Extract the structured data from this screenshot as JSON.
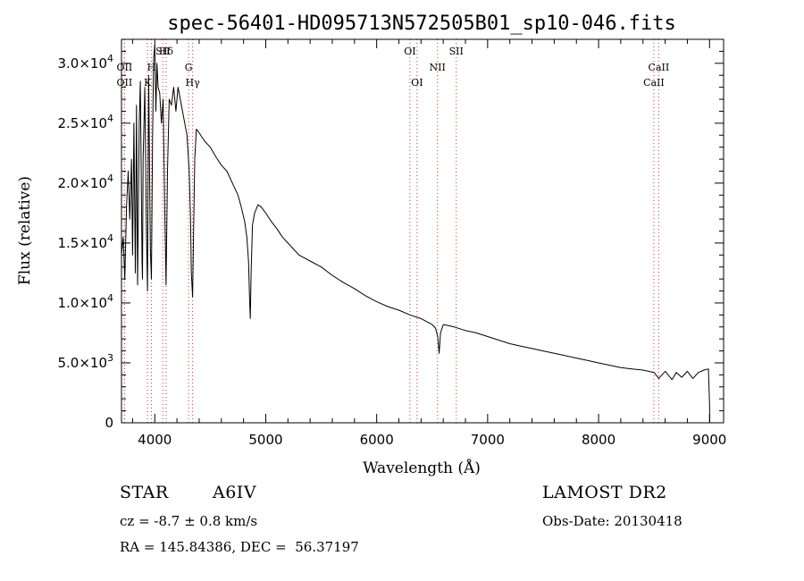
{
  "title": "spec-56401-HD095713N572505B01_sp10-046.fits",
  "info": {
    "class_label": "STAR",
    "subclass": "A6IV",
    "survey": "LAMOST DR2",
    "cz": "cz = -8.7 ± 0.8 km/s",
    "obs_date": "Obs-Date: 20130418",
    "radec": "RA = 145.84386, DEC =  56.37197"
  },
  "chart_data": {
    "type": "line",
    "title": "spec-56401-HD095713N572505B01_sp10-046.fits",
    "xlabel": "Wavelength (Å)",
    "ylabel": "Flux (relative)",
    "xlim": [
      3700,
      9100
    ],
    "ylim": [
      0,
      32000
    ],
    "grid": false,
    "x_ticks": [
      {
        "value": 4000,
        "label": "4000"
      },
      {
        "value": 5000,
        "label": "5000"
      },
      {
        "value": 6000,
        "label": "6000"
      },
      {
        "value": 7000,
        "label": "7000"
      },
      {
        "value": 8000,
        "label": "8000"
      },
      {
        "value": 9000,
        "label": "9000"
      }
    ],
    "y_ticks": [
      {
        "value": 0,
        "mant": "0",
        "exp": ""
      },
      {
        "value": 5000,
        "mant": "5.0×10",
        "exp": "3"
      },
      {
        "value": 10000,
        "mant": "1.0×10",
        "exp": "4"
      },
      {
        "value": 15000,
        "mant": "1.5×10",
        "exp": "4"
      },
      {
        "value": 20000,
        "mant": "2.0×10",
        "exp": "4"
      },
      {
        "value": 25000,
        "mant": "2.5×10",
        "exp": "4"
      },
      {
        "value": 30000,
        "mant": "3.0×10",
        "exp": "4"
      }
    ],
    "lines": [
      {
        "name": "Hδ",
        "wave": 4102,
        "row": 0
      },
      {
        "name": "OII",
        "wave": 3727,
        "row": 1
      },
      {
        "name": "OII",
        "wave": 3727,
        "row": 2
      },
      {
        "name": "K",
        "wave": 3934,
        "row": 2
      },
      {
        "name": "H",
        "wave": 3969,
        "row": 1
      },
      {
        "name": "SII",
        "wave": 4072,
        "row": 0
      },
      {
        "name": "Hγ",
        "wave": 4341,
        "row": 2
      },
      {
        "name": "G",
        "wave": 4305,
        "row": 1
      },
      {
        "name": "OI",
        "wave": 6300,
        "row": 0
      },
      {
        "name": "OI",
        "wave": 6364,
        "row": 2
      },
      {
        "name": "NII",
        "wave": 6548,
        "row": 1
      },
      {
        "name": "SII",
        "wave": 6717,
        "row": 0
      },
      {
        "name": "CaII",
        "wave": 8498,
        "row": 2
      },
      {
        "name": "CaII",
        "wave": 8542,
        "row": 1
      }
    ],
    "series": [
      {
        "name": "",
        "x": [
          3700,
          3715,
          3730,
          3745,
          3760,
          3775,
          3790,
          3800,
          3812,
          3825,
          3835,
          3845,
          3860,
          3870,
          3885,
          3889,
          3895,
          3910,
          3925,
          3934,
          3945,
          3960,
          3970,
          3980,
          3990,
          4000,
          4010,
          4020,
          4030,
          4045,
          4060,
          4075,
          4090,
          4102,
          4115,
          4130,
          4150,
          4170,
          4190,
          4210,
          4230,
          4250,
          4270,
          4290,
          4310,
          4322,
          4330,
          4341,
          4350,
          4360,
          4375,
          4400,
          4450,
          4500,
          4550,
          4600,
          4650,
          4700,
          4750,
          4780,
          4810,
          4830,
          4845,
          4855,
          4861,
          4868,
          4880,
          4900,
          4930,
          4960,
          5000,
          5050,
          5100,
          5150,
          5200,
          5250,
          5300,
          5400,
          5500,
          5600,
          5700,
          5800,
          5900,
          6000,
          6100,
          6200,
          6300,
          6400,
          6500,
          6530,
          6550,
          6563,
          6575,
          6600,
          6650,
          6700,
          6800,
          6900,
          7000,
          7100,
          7200,
          7300,
          7400,
          7500,
          7600,
          7700,
          7800,
          7900,
          8000,
          8100,
          8200,
          8300,
          8400,
          8500,
          8542,
          8600,
          8662,
          8700,
          8750,
          8800,
          8850,
          8900,
          8950,
          8990,
          9000,
          9002
        ],
        "y": [
          14000,
          15500,
          12000,
          18000,
          21000,
          17000,
          22000,
          14000,
          25000,
          12500,
          26500,
          11500,
          25000,
          28500,
          13500,
          12000,
          22000,
          28000,
          16000,
          11000,
          29000,
          14500,
          12000,
          24000,
          30500,
          31500,
          26000,
          30000,
          28000,
          27500,
          25000,
          27000,
          18000,
          11500,
          21000,
          27000,
          26500,
          28000,
          26000,
          28000,
          27000,
          26000,
          25000,
          24000,
          21000,
          17000,
          12500,
          10500,
          16000,
          22000,
          24500,
          24200,
          23500,
          23000,
          22200,
          21500,
          21000,
          20000,
          19000,
          18000,
          16800,
          15500,
          13500,
          10000,
          8700,
          12500,
          16500,
          17500,
          18200,
          18000,
          17500,
          16800,
          16200,
          15500,
          15000,
          14500,
          14000,
          13500,
          13000,
          12300,
          11700,
          11200,
          10600,
          10100,
          9700,
          9400,
          9000,
          8700,
          8200,
          7900,
          7200,
          5800,
          7500,
          8200,
          8100,
          8000,
          7700,
          7500,
          7200,
          6900,
          6600,
          6400,
          6200,
          6000,
          5800,
          5600,
          5400,
          5200,
          5000,
          4800,
          4600,
          4500,
          4400,
          4200,
          3700,
          4300,
          3600,
          4200,
          3800,
          4300,
          3700,
          4200,
          4400,
          4500,
          1500,
          0
        ]
      }
    ]
  }
}
